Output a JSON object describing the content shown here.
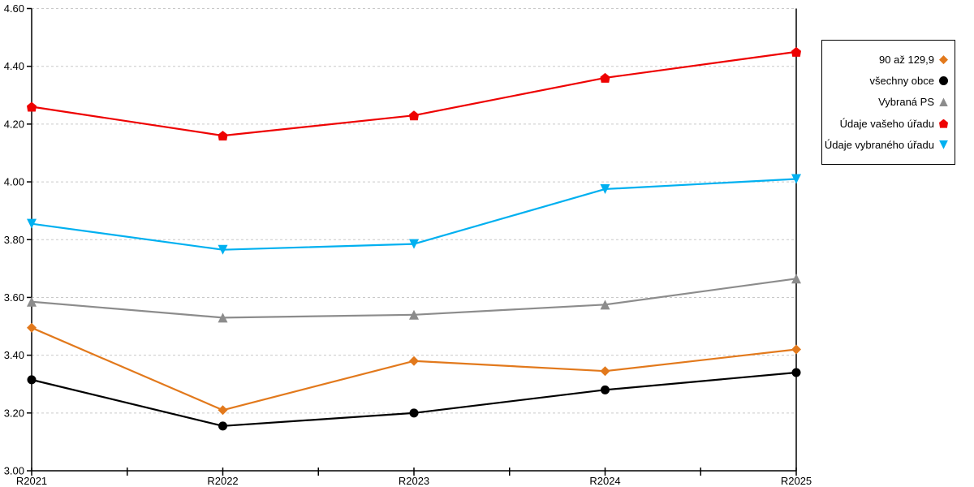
{
  "chart_data": {
    "type": "line",
    "categories": [
      "R2021",
      "R2022",
      "R2023",
      "R2024",
      "R2025"
    ],
    "series": [
      {
        "name": "90 až 129,9",
        "color": "#E2791C",
        "marker": "diamond",
        "values": [
          3.495,
          3.21,
          3.38,
          3.345,
          3.42
        ]
      },
      {
        "name": "všechny obce",
        "color": "#000000",
        "marker": "circle",
        "values": [
          3.315,
          3.155,
          3.2,
          3.28,
          3.34
        ]
      },
      {
        "name": "Vybraná PS",
        "color": "#8C8C8C",
        "marker": "triangle-up",
        "values": [
          3.585,
          3.53,
          3.54,
          3.575,
          3.665
        ]
      },
      {
        "name": "Údaje vašeho úřadu",
        "color": "#EE0202",
        "marker": "house",
        "values": [
          4.26,
          4.16,
          4.23,
          4.36,
          4.45
        ]
      },
      {
        "name": "Údaje vybraného úřadu",
        "color": "#00B0F0",
        "marker": "triangle-down",
        "values": [
          3.855,
          3.765,
          3.785,
          3.975,
          4.01
        ]
      }
    ],
    "title": "",
    "xlabel": "",
    "ylabel": "",
    "ylim": [
      3.0,
      4.6
    ],
    "ytick_step": 0.2,
    "ytick_labels": [
      "3.00",
      "3.20",
      "3.40",
      "3.60",
      "3.80",
      "4.00",
      "4.20",
      "4.40",
      "4.60"
    ],
    "grid": "dashed-horizontal",
    "gridline_color": "#C9C9C9",
    "axis_color": "#000000",
    "legend_position": "right",
    "legend_border_color": "#000000",
    "background_color": "#FFFFFF"
  }
}
